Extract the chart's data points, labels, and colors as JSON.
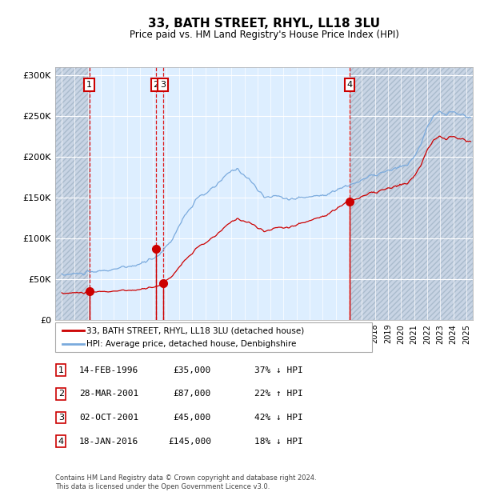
{
  "title": "33, BATH STREET, RHYL, LL18 3LU",
  "subtitle": "Price paid vs. HM Land Registry's House Price Index (HPI)",
  "transactions": [
    {
      "id": 1,
      "date_num": 1996.12,
      "price": 35000,
      "label": "14-FEB-1996",
      "price_str": "£35,000",
      "hpi_str": "37% ↓ HPI"
    },
    {
      "id": 2,
      "date_num": 2001.23,
      "price": 87000,
      "label": "28-MAR-2001",
      "price_str": "£87,000",
      "hpi_str": "22% ↑ HPI"
    },
    {
      "id": 3,
      "date_num": 2001.75,
      "price": 45000,
      "label": "02-OCT-2001",
      "price_str": "£45,000",
      "hpi_str": "42% ↓ HPI"
    },
    {
      "id": 4,
      "date_num": 2016.05,
      "price": 145000,
      "label": "18-JAN-2016",
      "price_str": "£145,000",
      "hpi_str": "18% ↓ HPI"
    }
  ],
  "legend_line1": "33, BATH STREET, RHYL, LL18 3LU (detached house)",
  "legend_line2": "HPI: Average price, detached house, Denbighshire",
  "footnote1": "Contains HM Land Registry data © Crown copyright and database right 2024.",
  "footnote2": "This data is licensed under the Open Government Licence v3.0.",
  "price_color": "#cc0000",
  "hpi_color": "#7aaadd",
  "background_color": "#ddeeff",
  "hatch_bg_color": "#c8d4e4",
  "ylim": [
    0,
    310000
  ],
  "xlim_start": 1993.5,
  "xlim_end": 2025.5,
  "yticks": [
    0,
    50000,
    100000,
    150000,
    200000,
    250000,
    300000
  ],
  "ytick_labels": [
    "£0",
    "£50K",
    "£100K",
    "£150K",
    "£200K",
    "£250K",
    "£300K"
  ]
}
